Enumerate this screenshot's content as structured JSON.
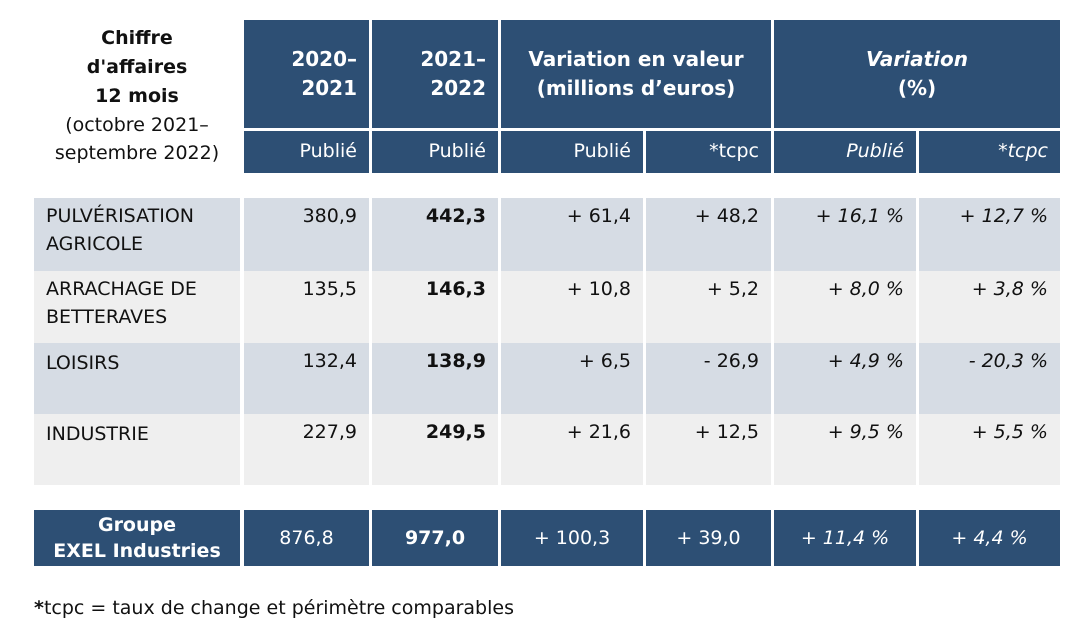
{
  "header": {
    "title_lines": [
      "Chiffre",
      "d'affaires",
      "12 mois"
    ],
    "period_lines": [
      "(octobre 2021–",
      "septembre 2022)"
    ],
    "col_2020": [
      "2020–",
      "2021"
    ],
    "col_2021": [
      "2021–",
      "2022"
    ],
    "variation_value": [
      "Variation en valeur",
      "(millions d’euros)"
    ],
    "variation_pct": [
      "Variation",
      "(%)"
    ],
    "sub": {
      "publie": "Publié",
      "tcpc": "*tcpc"
    }
  },
  "rows": [
    {
      "label_lines": [
        "PULVÉRISATION",
        "AGRICOLE"
      ],
      "v2020": "380,9",
      "v2021": "442,3",
      "var_pub": "+ 61,4",
      "var_tcpc": "+ 48,2",
      "pct_pub": "+ 16,1 %",
      "pct_tcpc": "+ 12,7 %"
    },
    {
      "label_lines": [
        "ARRACHAGE DE",
        "BETTERAVES"
      ],
      "v2020": "135,5",
      "v2021": "146,3",
      "var_pub": "+ 10,8",
      "var_tcpc": "+ 5,2",
      "pct_pub": "+ 8,0 %",
      "pct_tcpc": "+ 3,8 %"
    },
    {
      "label_lines": [
        "LOISIRS"
      ],
      "v2020": "132,4",
      "v2021": "138,9",
      "var_pub": "+ 6,5",
      "var_tcpc": "- 26,9",
      "pct_pub": "+ 4,9 %",
      "pct_tcpc": "- 20,3 %"
    },
    {
      "label_lines": [
        "INDUSTRIE"
      ],
      "v2020": "227,9",
      "v2021": "249,5",
      "var_pub": "+ 21,6",
      "var_tcpc": "+ 12,5",
      "pct_pub": "+ 9,5 %",
      "pct_tcpc": "+ 5,5 %"
    }
  ],
  "total": {
    "label_lines": [
      "Groupe",
      "EXEL Industries"
    ],
    "v2020": "876,8",
    "v2021": "977,0",
    "var_pub": "+ 100,3",
    "var_tcpc": "+ 39,0",
    "pct_pub": "+ 11,4 %",
    "pct_tcpc": "+ 4,4 %"
  },
  "footnote": {
    "star": "*",
    "text": "tcpc = taux de change et périmètre comparables"
  },
  "colors": {
    "header_bg": "#2d4f74",
    "row_shaded": "#d6dce4",
    "row_light": "#efefef"
  }
}
